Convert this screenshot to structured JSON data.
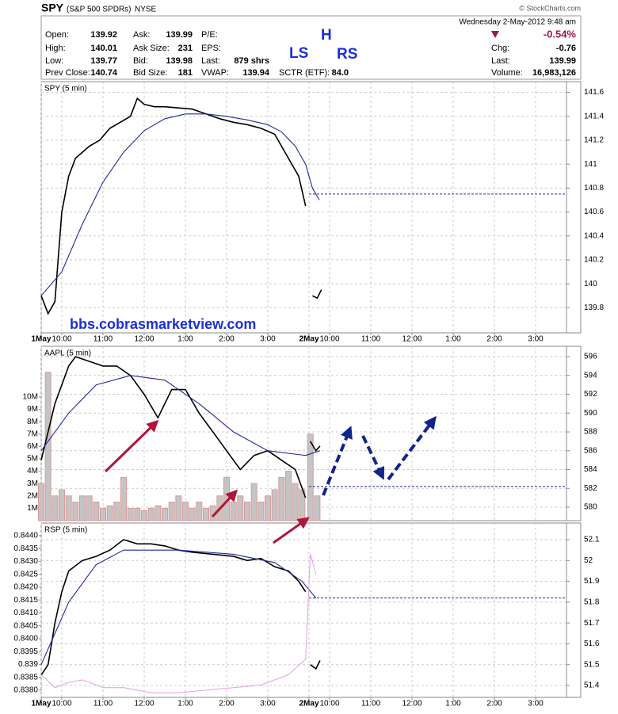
{
  "header": {
    "ticker": "SPY",
    "name": "(S&P 500 SPDRs)",
    "exchange": "NYSE",
    "credit": "© StockCharts.com",
    "date": "Wednesday  2-May-2012  9:48 am",
    "columns": [
      [
        {
          "label": "Open:",
          "value": "139.92"
        },
        {
          "label": "High:",
          "value": "140.01"
        },
        {
          "label": "Low:",
          "value": "139.77"
        },
        {
          "label": "Prev Close:",
          "value": "140.74"
        }
      ],
      [
        {
          "label": "Ask:",
          "value": "139.99"
        },
        {
          "label": "Ask Size:",
          "value": "231"
        },
        {
          "label": "Bid:",
          "value": "139.98"
        },
        {
          "label": "Bid Size:",
          "value": "181"
        }
      ],
      [
        {
          "label": "P/E:"
        },
        {
          "label": "EPS:"
        },
        {
          "label": "Last:",
          "value": "879 shrs"
        },
        {
          "label": "VWAP:",
          "value": "139.94"
        }
      ],
      [
        {
          "label": "SCTR (ETF):",
          "value": "84.0"
        }
      ]
    ],
    "change_pct": "-0.54%",
    "right": [
      {
        "label": "Chg:",
        "value": "-0.76"
      },
      {
        "label": "Last:",
        "value": "139.99"
      },
      {
        "label": "Volume:",
        "value": "16,983,126"
      }
    ]
  },
  "annotations": [
    "LS",
    "H",
    "RS",
    "bbs.cobrasmarketview.com"
  ],
  "chart_data": [
    {
      "type": "line",
      "label": "SPY (5 min)",
      "xlim": [
        0,
        765
      ],
      "ylim": [
        139.59,
        141.69
      ],
      "yticks": [
        139.8,
        140.0,
        140.2,
        140.4,
        140.6,
        140.8,
        141.0,
        141.2,
        141.4,
        141.6
      ],
      "xticks": [
        {
          "value": 0,
          "label": "1May"
        },
        {
          "value": 30,
          "label": "10:00"
        },
        {
          "value": 90,
          "label": "11:00"
        },
        {
          "value": 150,
          "label": "12:00"
        },
        {
          "value": 210,
          "label": "1:00"
        },
        {
          "value": 270,
          "label": "2:00"
        },
        {
          "value": 330,
          "label": "3:00"
        },
        {
          "value": 390,
          "label": "2May"
        },
        {
          "value": 420,
          "label": "10:00"
        },
        {
          "value": 480,
          "label": "11:00"
        },
        {
          "value": 540,
          "label": "12:00"
        },
        {
          "value": 600,
          "label": "1:00"
        },
        {
          "value": 660,
          "label": "2:00"
        },
        {
          "value": 720,
          "label": "3:00"
        }
      ],
      "reference_line": 140.75,
      "series": [
        {
          "color": "#000000",
          "x": [
            0,
            10,
            20,
            30,
            40,
            50,
            60,
            70,
            85,
            100,
            115,
            130,
            140,
            150,
            165,
            180,
            200,
            220,
            240,
            260,
            280,
            300,
            320,
            340,
            355,
            365,
            375,
            385,
            null,
            395,
            402,
            408
          ],
          "values": [
            139.9,
            139.75,
            139.85,
            140.6,
            140.9,
            141.05,
            141.1,
            141.15,
            141.2,
            141.3,
            141.35,
            141.4,
            141.55,
            141.5,
            141.48,
            141.48,
            141.47,
            141.46,
            141.42,
            141.38,
            141.35,
            141.33,
            141.3,
            141.25,
            141.1,
            141.0,
            140.9,
            140.65,
            null,
            139.9,
            139.88,
            139.95
          ]
        },
        {
          "color": "#1f2a9c",
          "x": [
            0,
            30,
            60,
            90,
            120,
            150,
            180,
            210,
            240,
            270,
            300,
            330,
            350,
            370,
            385,
            395,
            405
          ],
          "values": [
            139.9,
            140.1,
            140.5,
            140.85,
            141.1,
            141.28,
            141.38,
            141.42,
            141.42,
            141.4,
            141.37,
            141.33,
            141.27,
            141.15,
            141.0,
            140.8,
            140.7
          ]
        }
      ]
    },
    {
      "type": "line",
      "label": "AAPL (5 min)",
      "xlim": [
        0,
        765
      ],
      "ylim": [
        578.57,
        597.1
      ],
      "y2lim": [
        0,
        14100000
      ],
      "yticks": [
        580,
        582,
        584,
        586,
        588,
        590,
        592,
        594,
        596
      ],
      "y2ticks": [
        {
          "value": 1000000,
          "label": "1M"
        },
        {
          "value": 2000000,
          "label": "2M"
        },
        {
          "value": 3000000,
          "label": "3M"
        },
        {
          "value": 4000000,
          "label": "4M"
        },
        {
          "value": 5000000,
          "label": "5M"
        },
        {
          "value": 6000000,
          "label": "6M"
        },
        {
          "value": 7000000,
          "label": "7M"
        },
        {
          "value": 8000000,
          "label": "8M"
        },
        {
          "value": 9000000,
          "label": "9M"
        },
        {
          "value": 10000000,
          "label": "10M"
        }
      ],
      "reference_line": 582.2,
      "volume": {
        "color": "#c4c4c4",
        "x": [
          0,
          10,
          20,
          30,
          40,
          50,
          60,
          70,
          80,
          90,
          100,
          110,
          120,
          130,
          140,
          150,
          160,
          170,
          180,
          190,
          200,
          210,
          220,
          230,
          240,
          250,
          260,
          270,
          280,
          290,
          300,
          310,
          320,
          330,
          340,
          350,
          360,
          370,
          380,
          392,
          402
        ],
        "values": [
          3000000,
          12000000,
          2000000,
          2500000,
          2000000,
          1500000,
          2000000,
          2000000,
          1500000,
          1000000,
          1200000,
          1500000,
          3500000,
          1000000,
          1000000,
          800000,
          1000000,
          1200000,
          1000000,
          1500000,
          2000000,
          1500000,
          1000000,
          1500000,
          1000000,
          1200000,
          2000000,
          3500000,
          1500000,
          2000000,
          1500000,
          3000000,
          1500000,
          2000000,
          2500000,
          3500000,
          4000000,
          3000000,
          2500000,
          7000000,
          2000000
        ]
      },
      "series": [
        {
          "color": "#000000",
          "x": [
            0,
            10,
            20,
            30,
            40,
            50,
            70,
            90,
            110,
            130,
            150,
            170,
            180,
            190,
            210,
            230,
            250,
            270,
            290,
            310,
            330,
            350,
            370,
            385,
            null,
            392,
            400,
            406
          ],
          "values": [
            585,
            588,
            591,
            593,
            595,
            596,
            595.5,
            595,
            595,
            594,
            592,
            589.5,
            591,
            592.5,
            592.5,
            590,
            588,
            586,
            584,
            585.5,
            586,
            585,
            584,
            581,
            null,
            587,
            586,
            586.5
          ]
        },
        {
          "color": "#1f2a9c",
          "x": [
            0,
            40,
            80,
            130,
            180,
            230,
            280,
            330,
            385,
            406
          ],
          "values": [
            586,
            590,
            593,
            594,
            593.5,
            591,
            588,
            586,
            585.5,
            586
          ]
        }
      ]
    },
    {
      "type": "line",
      "label": "RSP (5 min)",
      "xlim": [
        0,
        765
      ],
      "ylim": [
        51.343,
        52.18
      ],
      "y2lim": [
        0.83772,
        0.84449
      ],
      "yticks": [
        51.4,
        51.5,
        51.6,
        51.7,
        51.8,
        51.9,
        52.0,
        52.1
      ],
      "y2ticks": [
        {
          "value": 0.838,
          "label": "0.8380"
        },
        0.8385,
        0.839,
        0.8395,
        {
          "value": 0.84,
          "label": "0.8400"
        },
        0.8405,
        {
          "value": 0.841,
          "label": "0.8410"
        },
        0.8415,
        {
          "value": 0.842,
          "label": "0.8420"
        },
        0.8425,
        {
          "value": 0.843,
          "label": "0.8430"
        },
        0.8435,
        {
          "value": 0.844,
          "label": "0.8440"
        }
      ],
      "xticks": [
        {
          "value": 0,
          "label": "1May"
        },
        {
          "value": 30,
          "label": "10:00"
        },
        {
          "value": 90,
          "label": "11:00"
        },
        {
          "value": 150,
          "label": "12:00"
        },
        {
          "value": 210,
          "label": "1:00"
        },
        {
          "value": 270,
          "label": "2:00"
        },
        {
          "value": 330,
          "label": "3:00"
        },
        {
          "value": 390,
          "label": "2May"
        },
        {
          "value": 420,
          "label": "10:00"
        },
        {
          "value": 480,
          "label": "11:00"
        },
        {
          "value": 540,
          "label": "12:00"
        },
        {
          "value": 600,
          "label": "1:00"
        },
        {
          "value": 660,
          "label": "2:00"
        },
        {
          "value": 720,
          "label": "3:00"
        }
      ],
      "reference_line": 51.82,
      "series": [
        {
          "color": "#000000",
          "x": [
            0,
            10,
            20,
            30,
            40,
            60,
            80,
            100,
            120,
            140,
            160,
            180,
            200,
            220,
            250,
            280,
            300,
            320,
            340,
            360,
            375,
            385,
            null,
            392,
            400,
            406
          ],
          "values": [
            51.45,
            51.5,
            51.7,
            51.85,
            51.95,
            52.0,
            52.02,
            52.05,
            52.1,
            52.08,
            52.08,
            52.07,
            52.05,
            52.04,
            52.03,
            52.02,
            52.0,
            52.01,
            51.97,
            51.95,
            51.9,
            51.85,
            null,
            51.5,
            51.48,
            51.52
          ]
        },
        {
          "color": "#1f2a9c",
          "x": [
            0,
            40,
            80,
            120,
            200,
            280,
            340,
            380,
            400
          ],
          "values": [
            51.5,
            51.8,
            51.98,
            52.05,
            52.05,
            52.03,
            51.99,
            51.9,
            51.82
          ]
        },
        {
          "color": "#e6a6e6",
          "axis": "y2",
          "x": [
            0,
            20,
            40,
            60,
            90,
            120,
            160,
            200,
            240,
            280,
            320,
            360,
            385,
            392,
            400
          ],
          "values": [
            0.8386,
            0.8381,
            0.8383,
            0.8384,
            0.8381,
            0.8381,
            0.8379,
            0.8379,
            0.838,
            0.8381,
            0.8382,
            0.8386,
            0.8392,
            0.8433,
            0.8425
          ]
        }
      ]
    }
  ]
}
